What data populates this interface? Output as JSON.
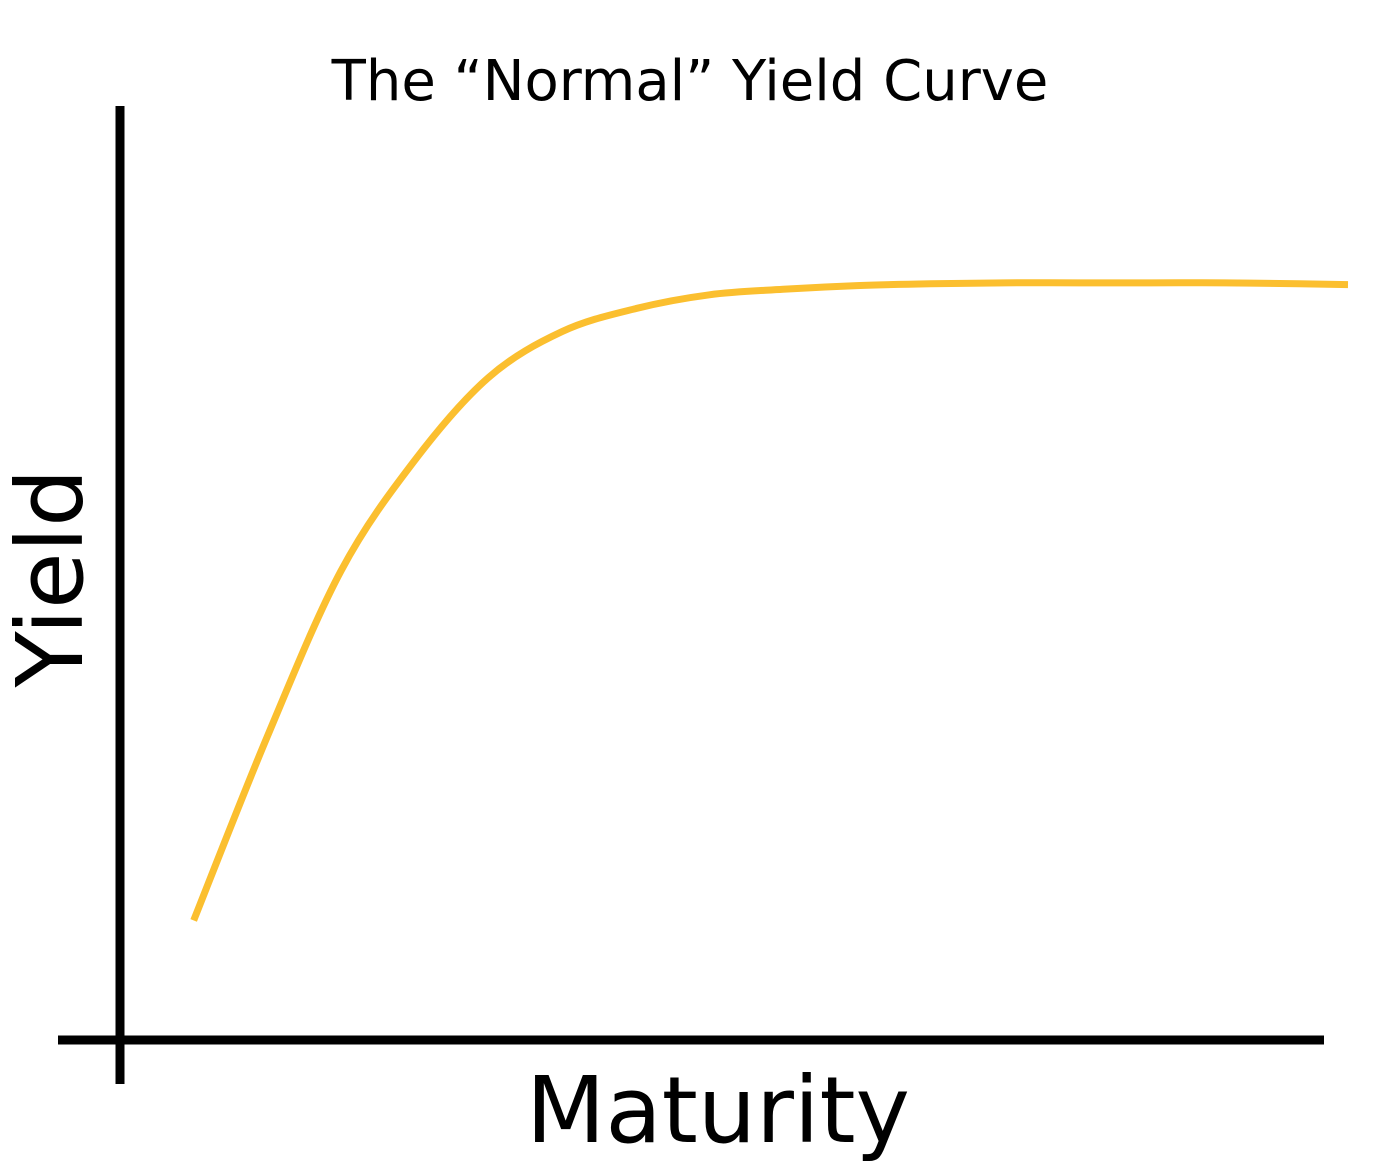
{
  "chart_data": {
    "type": "line",
    "title": "The “Normal” Yield Curve",
    "xlabel": "Maturity",
    "ylabel": "Yield",
    "xlim": [
      0,
      100
    ],
    "ylim": [
      0,
      100
    ],
    "grid": false,
    "legend": "none",
    "x_ticks": [],
    "y_ticks": [],
    "series": [
      {
        "color": "#FBBF2F",
        "x": [
          6,
          12,
          18,
          24,
          30,
          36,
          42,
          48,
          54,
          60,
          66,
          72,
          78,
          84,
          90,
          96,
          100
        ],
        "y": [
          13,
          33,
          51,
          63,
          72,
          77,
          79.5,
          81,
          81.6,
          82,
          82.2,
          82.3,
          82.3,
          82.3,
          82.3,
          82.2,
          82.1
        ]
      }
    ]
  }
}
